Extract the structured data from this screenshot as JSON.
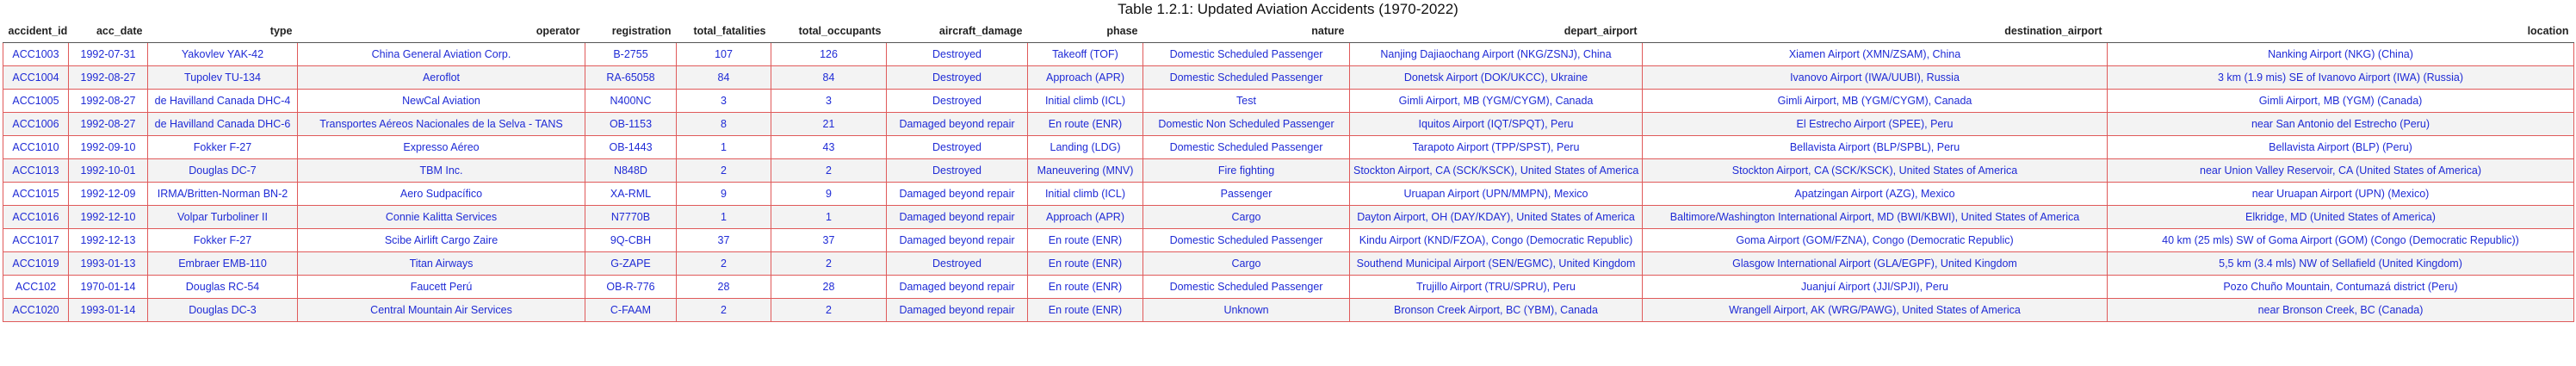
{
  "caption": "Table 1.2.1: Updated Aviation Accidents (1970-2022)",
  "columns": [
    {
      "key": "accident_id",
      "label": "accident_id"
    },
    {
      "key": "acc_date",
      "label": "acc_date"
    },
    {
      "key": "type",
      "label": "type"
    },
    {
      "key": "operator",
      "label": "operator"
    },
    {
      "key": "registration",
      "label": "registration"
    },
    {
      "key": "total_fatalities",
      "label": "total_fatalities"
    },
    {
      "key": "total_occupants",
      "label": "total_occupants"
    },
    {
      "key": "aircraft_damage",
      "label": "aircraft_damage"
    },
    {
      "key": "phase",
      "label": "phase"
    },
    {
      "key": "nature",
      "label": "nature"
    },
    {
      "key": "depart_airport",
      "label": "depart_airport"
    },
    {
      "key": "destination_airport",
      "label": "destination_airport"
    },
    {
      "key": "location",
      "label": "location"
    }
  ],
  "rows": [
    [
      "ACC1003",
      "1992-07-31",
      "Yakovlev YAK-42",
      "China General Aviation Corp.",
      "B-2755",
      "107",
      "126",
      "Destroyed",
      "Takeoff (TOF)",
      "Domestic Scheduled Passenger",
      "Nanjing Dajiaochang Airport (NKG/ZSNJ), China",
      "Xiamen Airport (XMN/ZSAM), China",
      "Nanking Airport (NKG) (China)"
    ],
    [
      "ACC1004",
      "1992-08-27",
      "Tupolev TU-134",
      "Aeroflot",
      "RA-65058",
      "84",
      "84",
      "Destroyed",
      "Approach (APR)",
      "Domestic Scheduled Passenger",
      "Donetsk Airport (DOK/UKCC), Ukraine",
      "Ivanovo Airport (IWA/UUBI), Russia",
      "3 km (1.9 mis) SE of Ivanovo Airport (IWA) (Russia)"
    ],
    [
      "ACC1005",
      "1992-08-27",
      "de Havilland Canada DHC-4",
      "NewCal Aviation",
      "N400NC",
      "3",
      "3",
      "Destroyed",
      "Initial climb (ICL)",
      "Test",
      "Gimli Airport, MB (YGM/CYGM), Canada",
      "Gimli Airport, MB (YGM/CYGM), Canada",
      "Gimli Airport, MB (YGM) (Canada)"
    ],
    [
      "ACC1006",
      "1992-08-27",
      "de Havilland Canada DHC-6",
      "Transportes Aéreos Nacionales de la Selva - TANS",
      "OB-1153",
      "8",
      "21",
      "Damaged beyond repair",
      "En route (ENR)",
      "Domestic Non Scheduled Passenger",
      "Iquitos Airport (IQT/SPQT), Peru",
      "El Estrecho Airport (SPEE), Peru",
      "near San Antonio del Estrecho (Peru)"
    ],
    [
      "ACC1010",
      "1992-09-10",
      "Fokker F-27",
      "Expresso Aéreo",
      "OB-1443",
      "1",
      "43",
      "Destroyed",
      "Landing (LDG)",
      "Domestic Scheduled Passenger",
      "Tarapoto Airport (TPP/SPST), Peru",
      "Bellavista Airport (BLP/SPBL), Peru",
      "Bellavista Airport (BLP) (Peru)"
    ],
    [
      "ACC1013",
      "1992-10-01",
      "Douglas DC-7",
      "TBM Inc.",
      "N848D",
      "2",
      "2",
      "Destroyed",
      "Maneuvering (MNV)",
      "Fire fighting",
      "Stockton Airport, CA (SCK/KSCK), United States of America",
      "Stockton Airport, CA (SCK/KSCK), United States of America",
      "near Union Valley Reservoir, CA (United States of America)"
    ],
    [
      "ACC1015",
      "1992-12-09",
      "IRMA/Britten-Norman BN-2",
      "Aero Sudpacífico",
      "XA-RML",
      "9",
      "9",
      "Damaged beyond repair",
      "Initial climb (ICL)",
      "Passenger",
      "Uruapan Airport (UPN/MMPN), Mexico",
      "Apatzingan Airport (AZG), Mexico",
      "near Uruapan Airport (UPN) (Mexico)"
    ],
    [
      "ACC1016",
      "1992-12-10",
      "Volpar Turboliner II",
      "Connie Kalitta Services",
      "N7770B",
      "1",
      "1",
      "Damaged beyond repair",
      "Approach (APR)",
      "Cargo",
      "Dayton Airport, OH (DAY/KDAY), United States of America",
      "Baltimore/Washington International Airport, MD (BWI/KBWI), United States of America",
      "Elkridge, MD (United States of America)"
    ],
    [
      "ACC1017",
      "1992-12-13",
      "Fokker F-27",
      "Scibe Airlift Cargo Zaire",
      "9Q-CBH",
      "37",
      "37",
      "Damaged beyond repair",
      "En route (ENR)",
      "Domestic Scheduled Passenger",
      "Kindu Airport (KND/FZOA), Congo (Democratic Republic)",
      "Goma Airport (GOM/FZNA), Congo (Democratic Republic)",
      "40 km (25 mls) SW of Goma Airport (GOM) (Congo (Democratic Republic))"
    ],
    [
      "ACC1019",
      "1993-01-13",
      "Embraer EMB-110",
      "Titan Airways",
      "G-ZAPE",
      "2",
      "2",
      "Destroyed",
      "En route (ENR)",
      "Cargo",
      "Southend Municipal Airport (SEN/EGMC), United Kingdom",
      "Glasgow International Airport (GLA/EGPF), United Kingdom",
      "5,5 km (3.4 mls) NW of Sellafield (United Kingdom)"
    ],
    [
      "ACC102",
      "1970-01-14",
      "Douglas RC-54",
      "Faucett Perú",
      "OB-R-776",
      "28",
      "28",
      "Damaged beyond repair",
      "En route (ENR)",
      "Domestic Scheduled Passenger",
      "Trujillo Airport (TRU/SPRU), Peru",
      "Juanjuí Airport (JJI/SPJI), Peru",
      "Pozo Chuño Mountain, Contumazá district (Peru)"
    ],
    [
      "ACC1020",
      "1993-01-14",
      "Douglas DC-3",
      "Central Mountain Air Services",
      "C-FAAM",
      "2",
      "2",
      "Damaged beyond repair",
      "En route (ENR)",
      "Unknown",
      "Bronson Creek Airport, BC (YBM), Canada",
      "Wrangell Airport, AK (WRG/PAWG), United States of America",
      "near Bronson Creek, BC (Canada)"
    ]
  ]
}
